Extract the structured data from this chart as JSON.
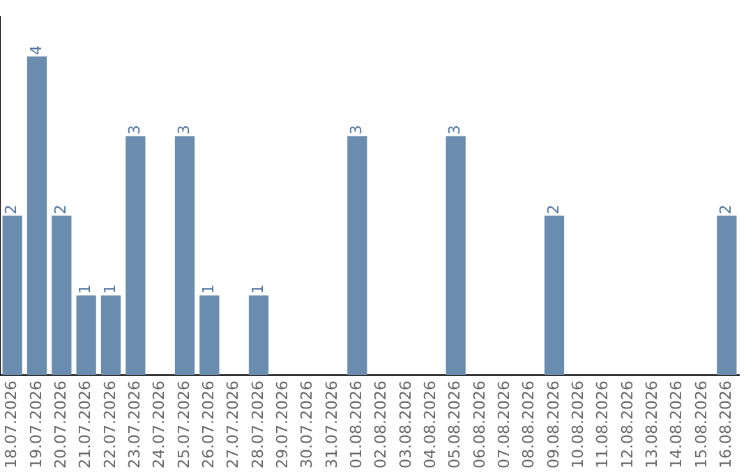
{
  "chart_data": {
    "type": "bar",
    "categories": [
      "18.07.2026",
      "19.07.2026",
      "20.07.2026",
      "21.07.2026",
      "22.07.2026",
      "23.07.2026",
      "24.07.2026",
      "25.07.2026",
      "26.07.2026",
      "27.07.2026",
      "28.07.2026",
      "29.07.2026",
      "30.07.2026",
      "31.07.2026",
      "01.08.2026",
      "02.08.2026",
      "03.08.2026",
      "04.08.2026",
      "05.08.2026",
      "06.08.2026",
      "07.08.2026",
      "08.08.2026",
      "09.08.2026",
      "10.08.2026",
      "11.08.2026",
      "12.08.2026",
      "13.08.2026",
      "14.08.2026",
      "15.08.2026",
      "16.08.2026"
    ],
    "values": [
      2,
      4,
      2,
      1,
      1,
      3,
      0,
      3,
      1,
      0,
      1,
      0,
      0,
      0,
      3,
      0,
      0,
      0,
      3,
      0,
      0,
      0,
      2,
      0,
      0,
      0,
      0,
      0,
      0,
      2
    ],
    "value_labels": [
      "2",
      "4",
      "2",
      "1",
      "1",
      "3",
      null,
      "3",
      "1",
      null,
      "1",
      null,
      null,
      null,
      "3",
      null,
      null,
      null,
      "3",
      null,
      null,
      null,
      "2",
      null,
      null,
      null,
      null,
      null,
      null,
      "2"
    ],
    "color": "#6a8caf",
    "tick_labels": "x",
    "grid": false,
    "legend": false
  }
}
